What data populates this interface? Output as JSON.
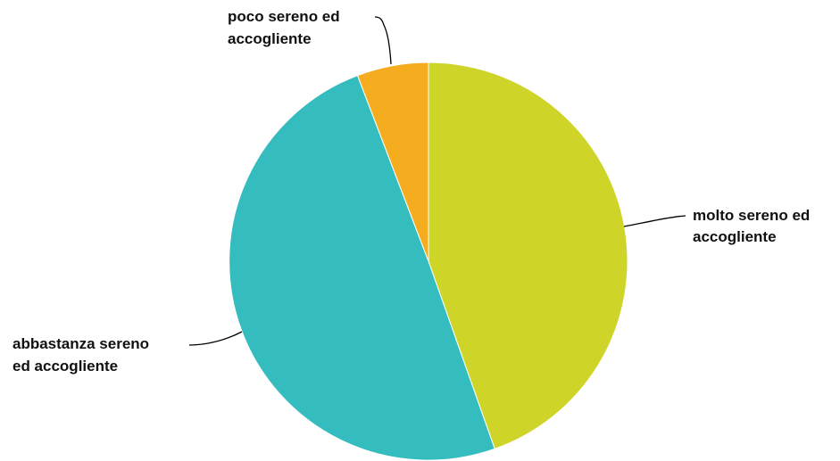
{
  "chart_data": {
    "type": "pie",
    "slices": [
      {
        "label_lines": [
          "molto sereno ed",
          "accogliente"
        ],
        "value": 44.6,
        "color": "#CED528"
      },
      {
        "label_lines": [
          "abbastanza sereno",
          "ed accogliente"
        ],
        "value": 49.6,
        "color": "#34BCBF"
      },
      {
        "label_lines": [
          "poco sereno ed",
          "accogliente"
        ],
        "value": 5.8,
        "color": "#F5AD1F"
      }
    ],
    "start_position": "top",
    "direction": "clockwise",
    "legend": "none, labels beside slices with leader lines"
  }
}
